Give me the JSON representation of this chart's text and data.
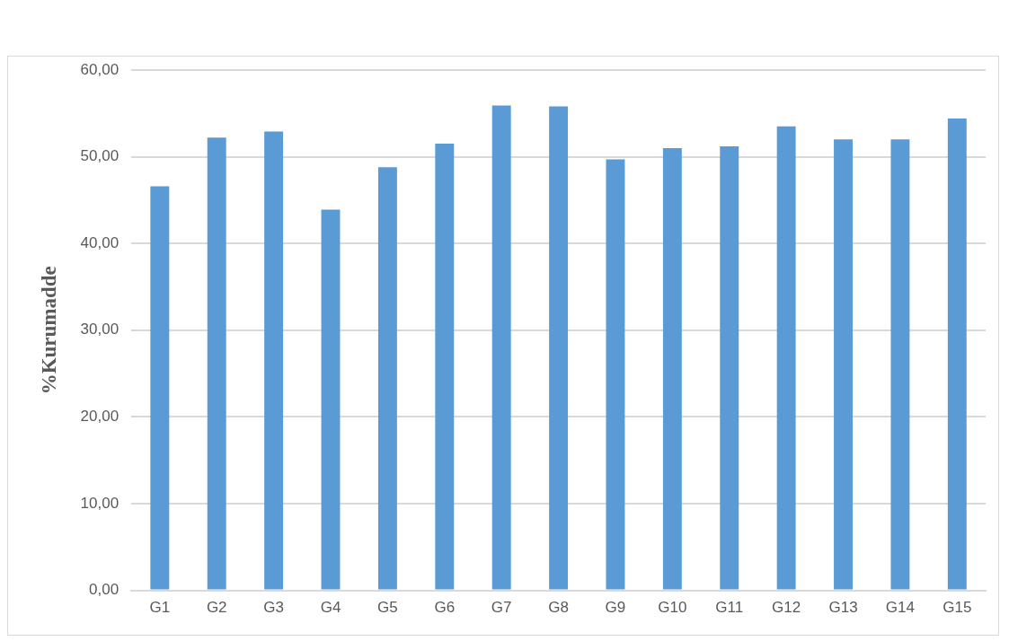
{
  "chart_data": {
    "type": "bar",
    "ylabel": "%Kurumadde",
    "categories": [
      "G1",
      "G2",
      "G3",
      "G4",
      "G5",
      "G6",
      "G7",
      "G8",
      "G9",
      "G10",
      "G11",
      "G12",
      "G13",
      "G14",
      "G15"
    ],
    "values": [
      46.6,
      52.2,
      52.9,
      43.9,
      48.8,
      51.5,
      55.9,
      55.8,
      49.7,
      51.0,
      51.2,
      53.5,
      52.0,
      52.0,
      54.4
    ],
    "color": "#5b9bd5",
    "ylim": [
      0,
      60
    ],
    "yticks": [
      {
        "value": 0,
        "label": "0,00"
      },
      {
        "value": 10,
        "label": "10,00"
      },
      {
        "value": 20,
        "label": "20,00"
      },
      {
        "value": 30,
        "label": "30,00"
      },
      {
        "value": 40,
        "label": "40,00"
      },
      {
        "value": 50,
        "label": "50,00"
      },
      {
        "value": 60,
        "label": "60,00"
      }
    ],
    "grid": "y",
    "legend": false
  }
}
